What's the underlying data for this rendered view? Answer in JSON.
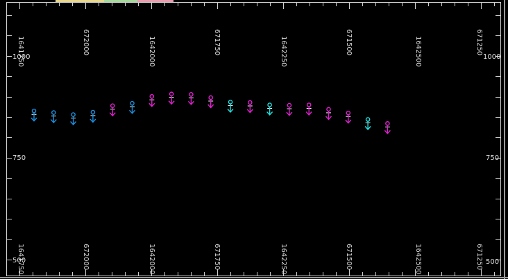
{
  "chart_data": {
    "type": "scatter",
    "title": "",
    "xlabel": "",
    "ylabel": "",
    "ylim": [
      500,
      1000
    ],
    "y_ticks": [
      "1000",
      "750",
      "500"
    ],
    "top_tick_labels": [
      "1641750",
      "672000",
      "1642000",
      "671750",
      "1642250",
      "671500",
      "1642500",
      "671250"
    ],
    "bottom_tick_labels": [
      "1641750",
      "672000",
      "1642000",
      "671750",
      "1642250",
      "671500",
      "1642500",
      "671250"
    ],
    "grid": false,
    "colors": {
      "blue": "#1a8fe0",
      "magenta": "#e020d0",
      "cyan": "#20e0e0",
      "white": "#ffffff"
    },
    "points": [
      {
        "x": 1,
        "y": 866,
        "color": "blue"
      },
      {
        "x": 2,
        "y": 862,
        "color": "blue"
      },
      {
        "x": 3,
        "y": 857,
        "color": "blue"
      },
      {
        "x": 4,
        "y": 863,
        "color": "blue"
      },
      {
        "x": 5,
        "y": 879,
        "color": "magenta"
      },
      {
        "x": 6,
        "y": 885,
        "color": "blue"
      },
      {
        "x": 7,
        "y": 902,
        "color": "magenta"
      },
      {
        "x": 8,
        "y": 908,
        "color": "magenta"
      },
      {
        "x": 9,
        "y": 907,
        "color": "magenta"
      },
      {
        "x": 10,
        "y": 899,
        "color": "magenta"
      },
      {
        "x": 11,
        "y": 888,
        "color": "cyan"
      },
      {
        "x": 12,
        "y": 887,
        "color": "magenta"
      },
      {
        "x": 13,
        "y": 881,
        "color": "cyan"
      },
      {
        "x": 14,
        "y": 880,
        "color": "magenta"
      },
      {
        "x": 15,
        "y": 881,
        "color": "magenta"
      },
      {
        "x": 16,
        "y": 870,
        "color": "magenta"
      },
      {
        "x": 17,
        "y": 861,
        "color": "magenta"
      },
      {
        "x": 18,
        "y": 845,
        "color": "cyan"
      },
      {
        "x": 19,
        "y": 835,
        "color": "magenta"
      }
    ]
  }
}
